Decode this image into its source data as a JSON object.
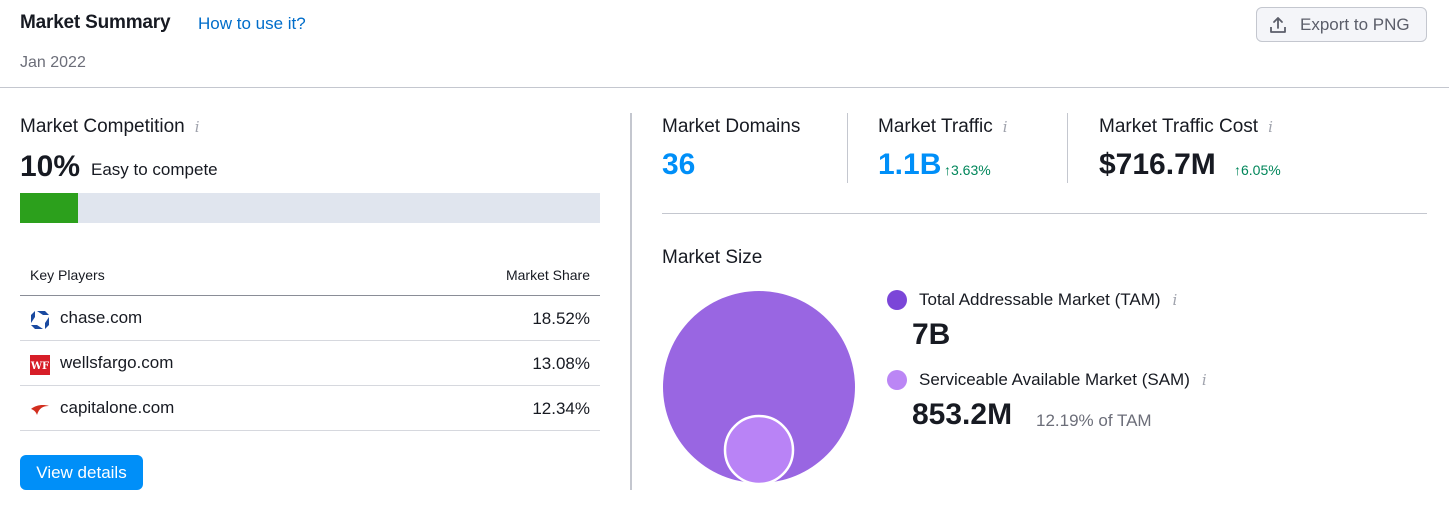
{
  "header": {
    "title": "Market Summary",
    "help_link": "How to use it?",
    "date": "Jan 2022",
    "export_label": "Export to PNG"
  },
  "market_competition": {
    "title": "Market Competition",
    "percent": "10%",
    "level": "Easy to compete",
    "bar_fraction": 0.1,
    "bar_color": "#2ca01c"
  },
  "key_players": {
    "col_player": "Key Players",
    "col_share": "Market Share",
    "rows": [
      {
        "domain": "chase.com",
        "share": "18.52%",
        "icon": "chase-logo-icon"
      },
      {
        "domain": "wellsfargo.com",
        "share": "13.08%",
        "icon": "wellsfargo-logo-icon",
        "logo_text": "WF"
      },
      {
        "domain": "capitalone.com",
        "share": "12.34%",
        "icon": "capitalone-logo-icon"
      }
    ]
  },
  "view_details_label": "View details",
  "metrics": {
    "domains": {
      "title": "Market Domains",
      "value": "36"
    },
    "traffic": {
      "title": "Market Traffic",
      "value": "1.1B",
      "delta": "↑3.63%"
    },
    "cost": {
      "title": "Market Traffic Cost",
      "value": "$716.7M",
      "delta": "↑6.05%"
    }
  },
  "market_size": {
    "title": "Market Size",
    "tam": {
      "label": "Total Addressable Market (TAM)",
      "value": "7B",
      "color": "#7b46d8"
    },
    "sam": {
      "label": "Serviceable Available Market (SAM)",
      "value": "853.2M",
      "sub": "12.19% of TAM",
      "color": "#bb86f5"
    }
  },
  "colors": {
    "accent_blue": "#008ff8",
    "link_blue": "#006dca",
    "positive_green": "#00865a",
    "bubble_tam": "#9966e2",
    "bubble_sam": "#b983f6"
  }
}
